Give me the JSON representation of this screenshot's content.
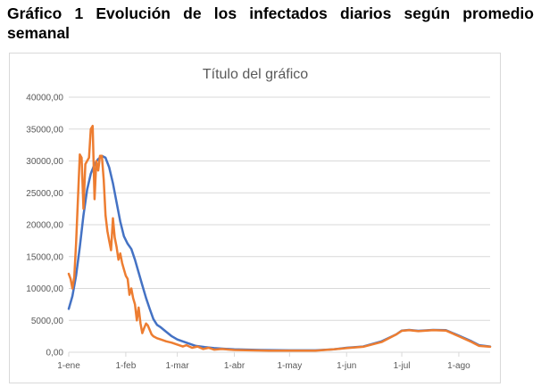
{
  "heading": {
    "text": "Gráfico 1 Evolución de los infectados diarios según promedio semanal"
  },
  "colors": {
    "weekly_average": "#4472c4",
    "daily": "#ed7d31",
    "grid": "#d9d9d9",
    "text": "#595959"
  },
  "chart_data": {
    "type": "line",
    "title": "Título del gráfico",
    "xlabel": "",
    "ylabel": "",
    "ylim": [
      0,
      40000
    ],
    "y_ticks": [
      0,
      5000,
      10000,
      15000,
      20000,
      25000,
      30000,
      35000,
      40000
    ],
    "y_tick_labels": [
      "0,00",
      "5000,00",
      "10000,00",
      "15000,00",
      "20000,00",
      "25000,00",
      "30000,00",
      "35000,00",
      "40000,00"
    ],
    "x_ticks": [
      "2021-01-01",
      "2021-02-01",
      "2021-03-01",
      "2021-04-01",
      "2021-05-01",
      "2021-06-01",
      "2021-07-01",
      "2021-08-01"
    ],
    "x_tick_labels": [
      "1-ene",
      "1-feb",
      "1-mar",
      "1-abr",
      "1-may",
      "1-jun",
      "1-jul",
      "1-ago"
    ],
    "xlim": [
      "2021-01-01",
      "2021-08-18"
    ],
    "grid": true,
    "legend": "none",
    "series": [
      {
        "color": "#4472c4",
        "points": [
          [
            "2021-01-01",
            6800
          ],
          [
            "2021-01-03",
            8800
          ],
          [
            "2021-01-05",
            12000
          ],
          [
            "2021-01-07",
            16500
          ],
          [
            "2021-01-09",
            21500
          ],
          [
            "2021-01-11",
            25500
          ],
          [
            "2021-01-13",
            28000
          ],
          [
            "2021-01-15",
            29500
          ],
          [
            "2021-01-17",
            30300
          ],
          [
            "2021-01-19",
            30800
          ],
          [
            "2021-01-21",
            30500
          ],
          [
            "2021-01-23",
            29000
          ],
          [
            "2021-01-25",
            26500
          ],
          [
            "2021-01-27",
            23500
          ],
          [
            "2021-01-29",
            20500
          ],
          [
            "2021-01-31",
            18200
          ],
          [
            "2021-02-02",
            17000
          ],
          [
            "2021-02-04",
            16200
          ],
          [
            "2021-02-06",
            14500
          ],
          [
            "2021-02-08",
            12500
          ],
          [
            "2021-02-10",
            10500
          ],
          [
            "2021-02-12",
            8500
          ],
          [
            "2021-02-14",
            6800
          ],
          [
            "2021-02-16",
            5200
          ],
          [
            "2021-02-18",
            4300
          ],
          [
            "2021-02-20",
            3900
          ],
          [
            "2021-02-23",
            3200
          ],
          [
            "2021-02-26",
            2500
          ],
          [
            "2021-03-01",
            2000
          ],
          [
            "2021-03-06",
            1500
          ],
          [
            "2021-03-11",
            1000
          ],
          [
            "2021-03-16",
            800
          ],
          [
            "2021-03-21",
            650
          ],
          [
            "2021-04-01",
            450
          ],
          [
            "2021-04-15",
            350
          ],
          [
            "2021-05-01",
            300
          ],
          [
            "2021-05-15",
            300
          ],
          [
            "2021-05-25",
            450
          ],
          [
            "2021-06-01",
            700
          ],
          [
            "2021-06-10",
            900
          ],
          [
            "2021-06-20",
            1700
          ],
          [
            "2021-06-28",
            2800
          ],
          [
            "2021-07-01",
            3400
          ],
          [
            "2021-07-05",
            3500
          ],
          [
            "2021-07-10",
            3350
          ],
          [
            "2021-07-18",
            3500
          ],
          [
            "2021-07-25",
            3450
          ],
          [
            "2021-08-01",
            2600
          ],
          [
            "2021-08-08",
            1700
          ],
          [
            "2021-08-12",
            1100
          ],
          [
            "2021-08-18",
            900
          ]
        ]
      },
      {
        "color": "#ed7d31",
        "points": [
          [
            "2021-01-01",
            12300
          ],
          [
            "2021-01-02",
            11500
          ],
          [
            "2021-01-03",
            10000
          ],
          [
            "2021-01-04",
            11800
          ],
          [
            "2021-01-05",
            17000
          ],
          [
            "2021-01-06",
            24000
          ],
          [
            "2021-01-07",
            31000
          ],
          [
            "2021-01-08",
            30500
          ],
          [
            "2021-01-09",
            22500
          ],
          [
            "2021-01-10",
            29500
          ],
          [
            "2021-01-11",
            30000
          ],
          [
            "2021-01-12",
            30500
          ],
          [
            "2021-01-13",
            35000
          ],
          [
            "2021-01-14",
            35500
          ],
          [
            "2021-01-15",
            24000
          ],
          [
            "2021-01-16",
            30000
          ],
          [
            "2021-01-17",
            28500
          ],
          [
            "2021-01-18",
            30800
          ],
          [
            "2021-01-19",
            30800
          ],
          [
            "2021-01-20",
            27000
          ],
          [
            "2021-01-21",
            21500
          ],
          [
            "2021-01-22",
            19000
          ],
          [
            "2021-01-23",
            17500
          ],
          [
            "2021-01-24",
            16000
          ],
          [
            "2021-01-25",
            21000
          ],
          [
            "2021-01-26",
            18000
          ],
          [
            "2021-01-27",
            16500
          ],
          [
            "2021-01-28",
            14500
          ],
          [
            "2021-01-29",
            15500
          ],
          [
            "2021-01-30",
            14000
          ],
          [
            "2021-01-31",
            13000
          ],
          [
            "2021-02-01",
            12000
          ],
          [
            "2021-02-02",
            11500
          ],
          [
            "2021-02-03",
            9000
          ],
          [
            "2021-02-04",
            10000
          ],
          [
            "2021-02-05",
            8500
          ],
          [
            "2021-02-06",
            7500
          ],
          [
            "2021-02-07",
            5000
          ],
          [
            "2021-02-08",
            7000
          ],
          [
            "2021-02-09",
            4500
          ],
          [
            "2021-02-10",
            3000
          ],
          [
            "2021-02-11",
            3800
          ],
          [
            "2021-02-12",
            4500
          ],
          [
            "2021-02-13",
            4200
          ],
          [
            "2021-02-14",
            3500
          ],
          [
            "2021-02-15",
            2800
          ],
          [
            "2021-02-16",
            2500
          ],
          [
            "2021-02-18",
            2200
          ],
          [
            "2021-02-20",
            2000
          ],
          [
            "2021-02-23",
            1700
          ],
          [
            "2021-02-26",
            1500
          ],
          [
            "2021-03-01",
            1200
          ],
          [
            "2021-03-04",
            900
          ],
          [
            "2021-03-06",
            1100
          ],
          [
            "2021-03-09",
            700
          ],
          [
            "2021-03-12",
            900
          ],
          [
            "2021-03-15",
            500
          ],
          [
            "2021-03-18",
            700
          ],
          [
            "2021-03-21",
            400
          ],
          [
            "2021-03-25",
            500
          ],
          [
            "2021-04-01",
            350
          ],
          [
            "2021-04-10",
            300
          ],
          [
            "2021-04-20",
            250
          ],
          [
            "2021-05-01",
            250
          ],
          [
            "2021-05-15",
            250
          ],
          [
            "2021-05-25",
            450
          ],
          [
            "2021-06-01",
            650
          ],
          [
            "2021-06-10",
            850
          ],
          [
            "2021-06-20",
            1600
          ],
          [
            "2021-06-28",
            2800
          ],
          [
            "2021-07-01",
            3350
          ],
          [
            "2021-07-05",
            3450
          ],
          [
            "2021-07-10",
            3300
          ],
          [
            "2021-07-18",
            3450
          ],
          [
            "2021-07-25",
            3400
          ],
          [
            "2021-08-01",
            2500
          ],
          [
            "2021-08-08",
            1600
          ],
          [
            "2021-08-12",
            1000
          ],
          [
            "2021-08-18",
            850
          ]
        ]
      }
    ]
  }
}
